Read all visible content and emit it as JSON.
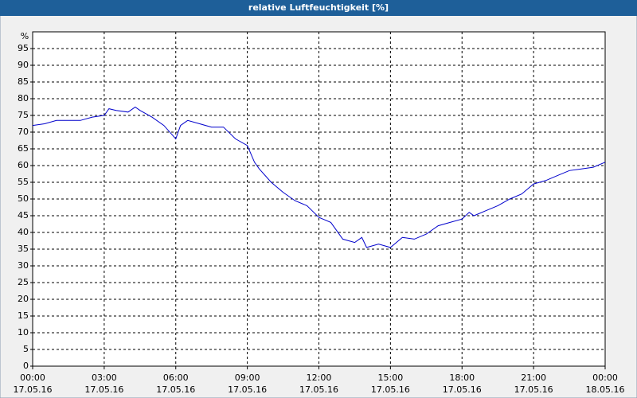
{
  "chart_data": {
    "type": "line",
    "title": "relative Luftfeuchtigkeit [%]",
    "y_label": "%",
    "x": [
      0,
      0.5,
      1,
      1.5,
      2,
      2.5,
      3,
      3.2,
      3.5,
      4,
      4.3,
      4.5,
      5,
      5.5,
      6,
      6.2,
      6.5,
      7,
      7.5,
      8,
      8.5,
      9,
      9.3,
      9.5,
      10,
      10.5,
      11,
      11.5,
      12,
      12.5,
      13,
      13.5,
      13.8,
      14,
      14.5,
      15,
      15.5,
      16,
      16.5,
      17,
      17.5,
      18,
      18.3,
      18.5,
      19,
      19.5,
      20,
      20.5,
      21,
      21.5,
      22,
      22.5,
      23,
      23.5,
      24
    ],
    "series": [
      {
        "name": "relative Luftfeuchtigkeit",
        "color": "#0000cc",
        "values": [
          72,
          72.5,
          73.5,
          73.5,
          73.5,
          74.5,
          75,
          77,
          76.5,
          76,
          77.5,
          76.5,
          74.5,
          72,
          68,
          72,
          73.5,
          72.5,
          71.5,
          71.5,
          68,
          66,
          61,
          59,
          55,
          52,
          49.5,
          48,
          44.5,
          43,
          38,
          37,
          38.5,
          35.5,
          36.5,
          35.5,
          38.5,
          38,
          39.5,
          42,
          43,
          44,
          46,
          45,
          46.5,
          48,
          50,
          51.5,
          54.5,
          55.5,
          57,
          58.5,
          59,
          59.5,
          61
        ]
      }
    ],
    "xlim": [
      0,
      24
    ],
    "xticks": [
      {
        "value": 0,
        "label": "00:00 17.05.16"
      },
      {
        "value": 3,
        "label": "03:00 17.05.16"
      },
      {
        "value": 6,
        "label": "06:00 17.05.16"
      },
      {
        "value": 9,
        "label": "09:00 17.05.16"
      },
      {
        "value": 12,
        "label": "12:00 17.05.16"
      },
      {
        "value": 15,
        "label": "15:00 17.05.16"
      },
      {
        "value": 18,
        "label": "18:00 17.05.16"
      },
      {
        "value": 21,
        "label": "21:00 17.05.16"
      },
      {
        "value": 24,
        "label": "00:00 18.05.16"
      }
    ],
    "ylim": [
      0,
      100
    ],
    "yticks": [
      0,
      5,
      10,
      15,
      20,
      25,
      30,
      35,
      40,
      45,
      50,
      55,
      60,
      65,
      70,
      75,
      80,
      85,
      90,
      95
    ],
    "grid": true
  }
}
